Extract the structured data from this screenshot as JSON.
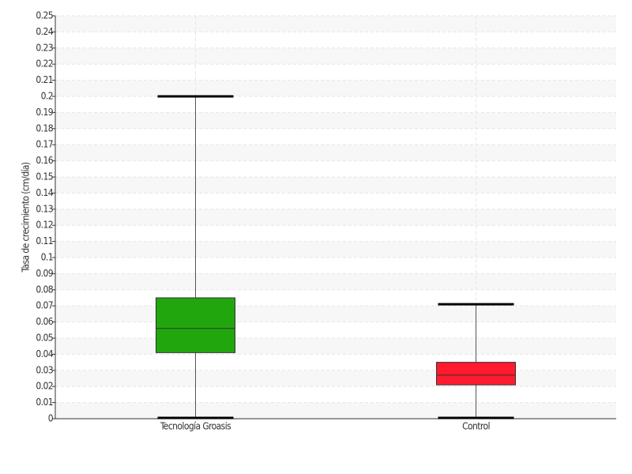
{
  "chart_data": {
    "type": "box",
    "y_label": "Tasa de crecimiento (cm/día)",
    "categories": [
      "Tecnología Groasis",
      "Control"
    ],
    "boxes": [
      {
        "color": "#22a60e",
        "min": 0,
        "q1": 0.041,
        "median": 0.056,
        "q3": 0.075,
        "max": 0.2
      },
      {
        "color": "#ff1a2e",
        "min": 0,
        "q1": 0.021,
        "median": 0.027,
        "q3": 0.035,
        "max": 0.071
      }
    ],
    "ylim": [
      0,
      0.25
    ],
    "yticks": [
      0,
      0.01,
      0.02,
      0.03,
      0.04,
      0.05,
      0.06,
      0.07,
      0.08,
      0.09,
      0.1,
      0.11,
      0.12,
      0.13,
      0.14,
      0.15,
      0.16,
      0.17,
      0.18,
      0.19,
      0.2,
      0.21,
      0.22,
      0.23,
      0.24,
      0.25
    ],
    "grid": true
  }
}
